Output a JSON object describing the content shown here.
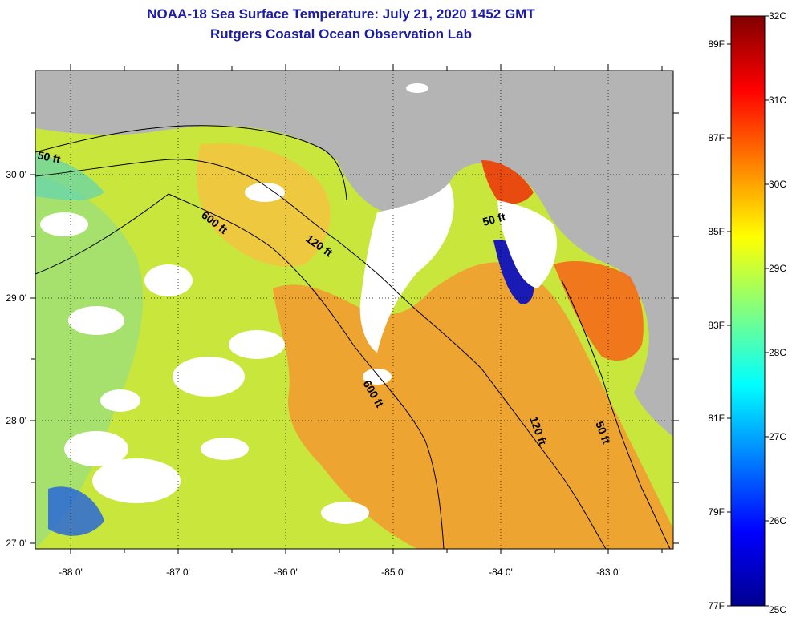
{
  "title": {
    "line1": "NOAA-18 Sea Surface Temperature:  July 21, 2020 1452 GMT",
    "line2": "Rutgers Coastal Ocean Observation Lab"
  },
  "map": {
    "lon_ticks": [
      "-88 0'",
      "-87 0'",
      "-86 0'",
      "-85 0'",
      "-84 0'",
      "-83 0'"
    ],
    "lat_ticks": [
      "30 0'",
      "29 0'",
      "28 0'",
      "27 0'"
    ],
    "contours": [
      "50 ft",
      "600 ft",
      "120 ft",
      "600 ft",
      "50 ft",
      "120 ft",
      "50 ft"
    ],
    "land_color": "#b4b4b4",
    "cloud_color": "#ffffff"
  },
  "colorbar": {
    "celsius_labels": [
      "32C",
      "31C",
      "30C",
      "29C",
      "28C",
      "27C",
      "26C",
      "25C"
    ],
    "fahrenheit_labels": [
      "89F",
      "87F",
      "85F",
      "83F",
      "81F",
      "79F",
      "77F"
    ],
    "range_c": [
      25,
      32
    ],
    "colormap": [
      "#00008f",
      "#0000ff",
      "#0080ff",
      "#00ffff",
      "#80ff80",
      "#ffff00",
      "#ff8000",
      "#ff0000",
      "#800000"
    ]
  }
}
